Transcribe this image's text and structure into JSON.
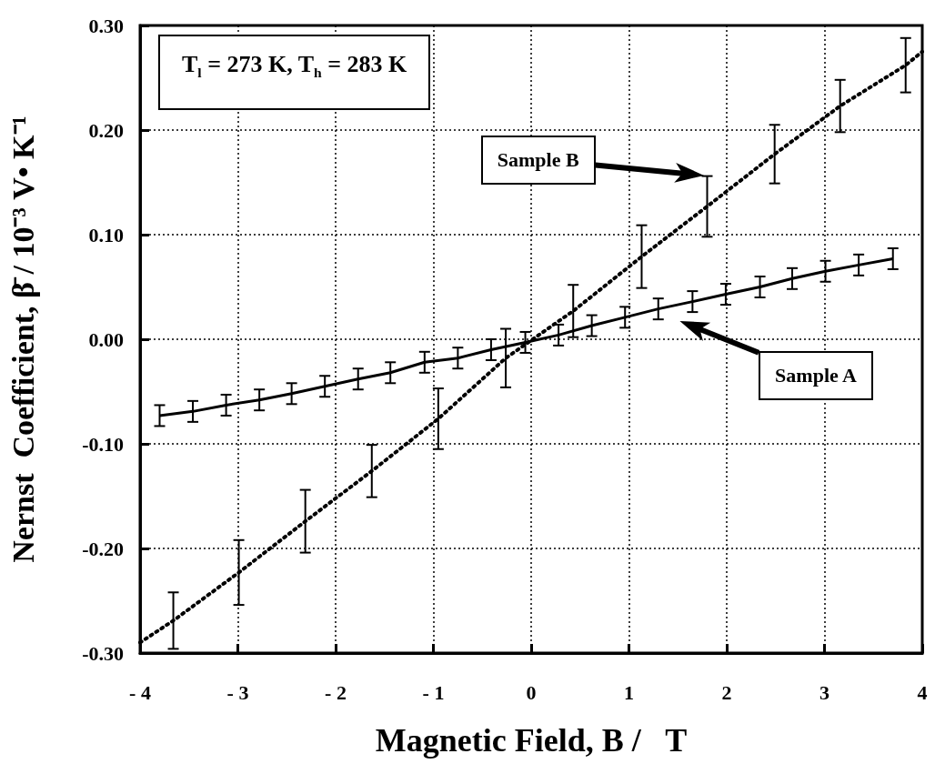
{
  "chart_data": {
    "type": "line",
    "xlabel": "Magnetic Field, B /   T",
    "ylabel": "Nernst  Coefficient, β̄ / 10⁻³ V• K⁻¹",
    "xlim": [
      -4,
      4
    ],
    "xticks": [
      {
        "value": -4,
        "label": "- 4"
      },
      {
        "value": -3,
        "label": "- 3"
      },
      {
        "value": -2,
        "label": "- 2"
      },
      {
        "value": -1,
        "label": "- 1"
      },
      0,
      1,
      2,
      3,
      4
    ],
    "ylim": [
      -0.3,
      0.3
    ],
    "yticks": [
      {
        "value": -0.3,
        "label": "-0.30"
      },
      {
        "value": -0.2,
        "label": "-0.20"
      },
      {
        "value": -0.1,
        "label": "-0.10"
      },
      {
        "value": 0,
        "label": "0.00"
      },
      {
        "value": 0.1,
        "label": "0.10"
      },
      {
        "value": 0.2,
        "label": "0.20"
      },
      {
        "value": 0.3,
        "label": "0.30"
      }
    ],
    "grid": true,
    "marker": "none",
    "series": [
      {
        "color": "#000000",
        "line_style": "solid",
        "x": [
          -3.8,
          -3.46,
          -3.12,
          -2.78,
          -2.45,
          -2.11,
          -1.77,
          -1.44,
          -1.09,
          -0.75,
          -0.41,
          -0.06,
          0.28,
          0.62,
          0.96,
          1.3,
          1.65,
          1.99,
          2.34,
          2.67,
          3.01,
          3.35,
          3.7
        ],
        "values": [
          -0.073,
          -0.069,
          -0.063,
          -0.058,
          -0.052,
          -0.045,
          -0.038,
          -0.032,
          -0.022,
          -0.018,
          -0.01,
          -0.003,
          0.004,
          0.013,
          0.021,
          0.029,
          0.036,
          0.043,
          0.05,
          0.058,
          0.065,
          0.071,
          0.077
        ],
        "errors": [
          0.01,
          0.01,
          0.01,
          0.01,
          0.01,
          0.01,
          0.01,
          0.01,
          0.01,
          0.01,
          0.01,
          0.01,
          0.01,
          0.01,
          0.01,
          0.01,
          0.01,
          0.01,
          0.01,
          0.01,
          0.01,
          0.01,
          0.01
        ]
      },
      {
        "color": "#000000",
        "line_style": "dotted",
        "x": [
          -4,
          -3.66,
          -2.99,
          -2.31,
          -1.63,
          -0.95,
          -0.26,
          0.43,
          1.13,
          1.8,
          2.49,
          3.16,
          3.83,
          4
        ],
        "values": [
          -0.29,
          -0.269,
          -0.223,
          -0.174,
          -0.126,
          -0.076,
          -0.018,
          0.027,
          0.079,
          0.127,
          0.177,
          0.223,
          0.262,
          0.275
        ],
        "errors": [
          null,
          0.027,
          0.031,
          0.03,
          0.025,
          0.029,
          0.028,
          0.025,
          0.03,
          0.029,
          0.028,
          0.025,
          0.026,
          null
        ]
      }
    ],
    "annotations": [
      "T$_{l}$ = 273 K,   T$_{h}$ = 283 K",
      "Sample B",
      "Sample A"
    ]
  }
}
